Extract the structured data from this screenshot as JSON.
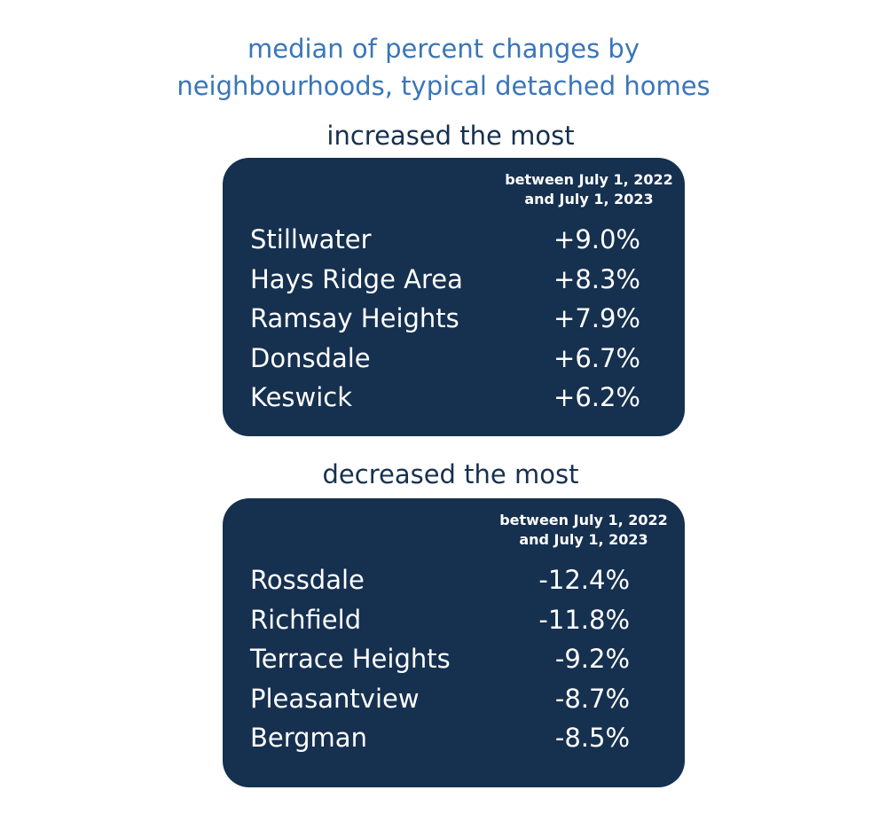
{
  "title": {
    "line1": "median of percent changes by",
    "line2": "neighbourhoods, typical detached homes"
  },
  "increased": {
    "label": "increased the most",
    "header_line1": "between July 1, 2022",
    "header_line2": "and July 1, 2023",
    "rows": [
      {
        "name": "Stillwater",
        "value": "+9.0%"
      },
      {
        "name": "Hays Ridge Area",
        "value": "+8.3%"
      },
      {
        "name": "Ramsay Heights",
        "value": "+7.9%"
      },
      {
        "name": "Donsdale",
        "value": "+6.7%"
      },
      {
        "name": "Keswick",
        "value": "+6.2%"
      }
    ]
  },
  "decreased": {
    "label": "decreased the most",
    "header_line1": "between July 1, 2022",
    "header_line2": "and July 1, 2023",
    "rows": [
      {
        "name": "Rossdale",
        "value": "-12.4%"
      },
      {
        "name": "Richfield",
        "value": "-11.8%"
      },
      {
        "name": "Terrace Heights",
        "value": "-9.2%"
      },
      {
        "name": "Pleasantview",
        "value": "-8.7%"
      },
      {
        "name": "Bergman",
        "value": "-8.5%"
      }
    ]
  },
  "colors": {
    "title": "#3a76b8",
    "box": "#16304f",
    "label": "#16304f"
  }
}
